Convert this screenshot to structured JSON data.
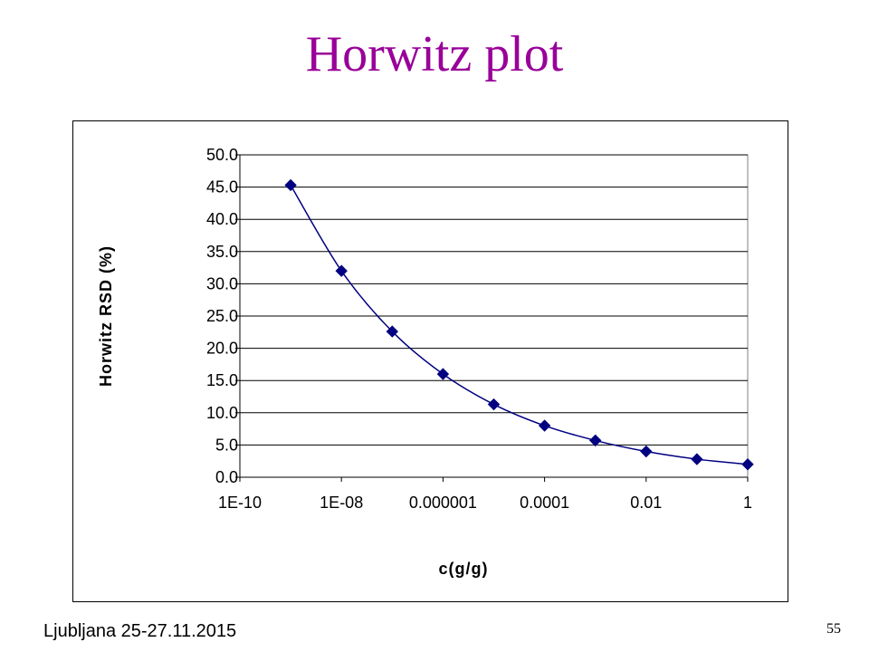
{
  "slide": {
    "title": "Horwitz plot",
    "footer_left": "Ljubljana 25-27.11.2015",
    "page_number": "55",
    "title_color": "#990099"
  },
  "chart_data": {
    "type": "scatter",
    "title": "",
    "xlabel": "c(g/g)",
    "ylabel": "Horwitz RSD (%)",
    "x_scale": "log",
    "xlim": [
      1e-10,
      1
    ],
    "ylim": [
      0,
      50
    ],
    "x_tick_labels": [
      "1E-10",
      "1E-08",
      "0.000001",
      "0.0001",
      "0.01",
      "1"
    ],
    "x_ticks": [
      1e-10,
      1e-08,
      1e-06,
      0.0001,
      0.01,
      1
    ],
    "y_tick_labels": [
      "0.0",
      "5.0",
      "10.0",
      "15.0",
      "20.0",
      "25.0",
      "30.0",
      "35.0",
      "40.0",
      "45.0",
      "50.0"
    ],
    "y_ticks": [
      0,
      5,
      10,
      15,
      20,
      25,
      30,
      35,
      40,
      45,
      50
    ],
    "grid": "horizontal",
    "marker": "diamond",
    "smoothed_line": true,
    "series_color": "#000080",
    "series": [
      {
        "x": [
          1e-09,
          1e-08,
          1e-07,
          1e-06,
          1e-05,
          0.0001,
          0.001,
          0.01,
          0.1,
          1
        ],
        "y": [
          45.3,
          32.0,
          22.6,
          16.0,
          11.3,
          8.0,
          5.7,
          4.0,
          2.8,
          2.0
        ]
      }
    ]
  }
}
